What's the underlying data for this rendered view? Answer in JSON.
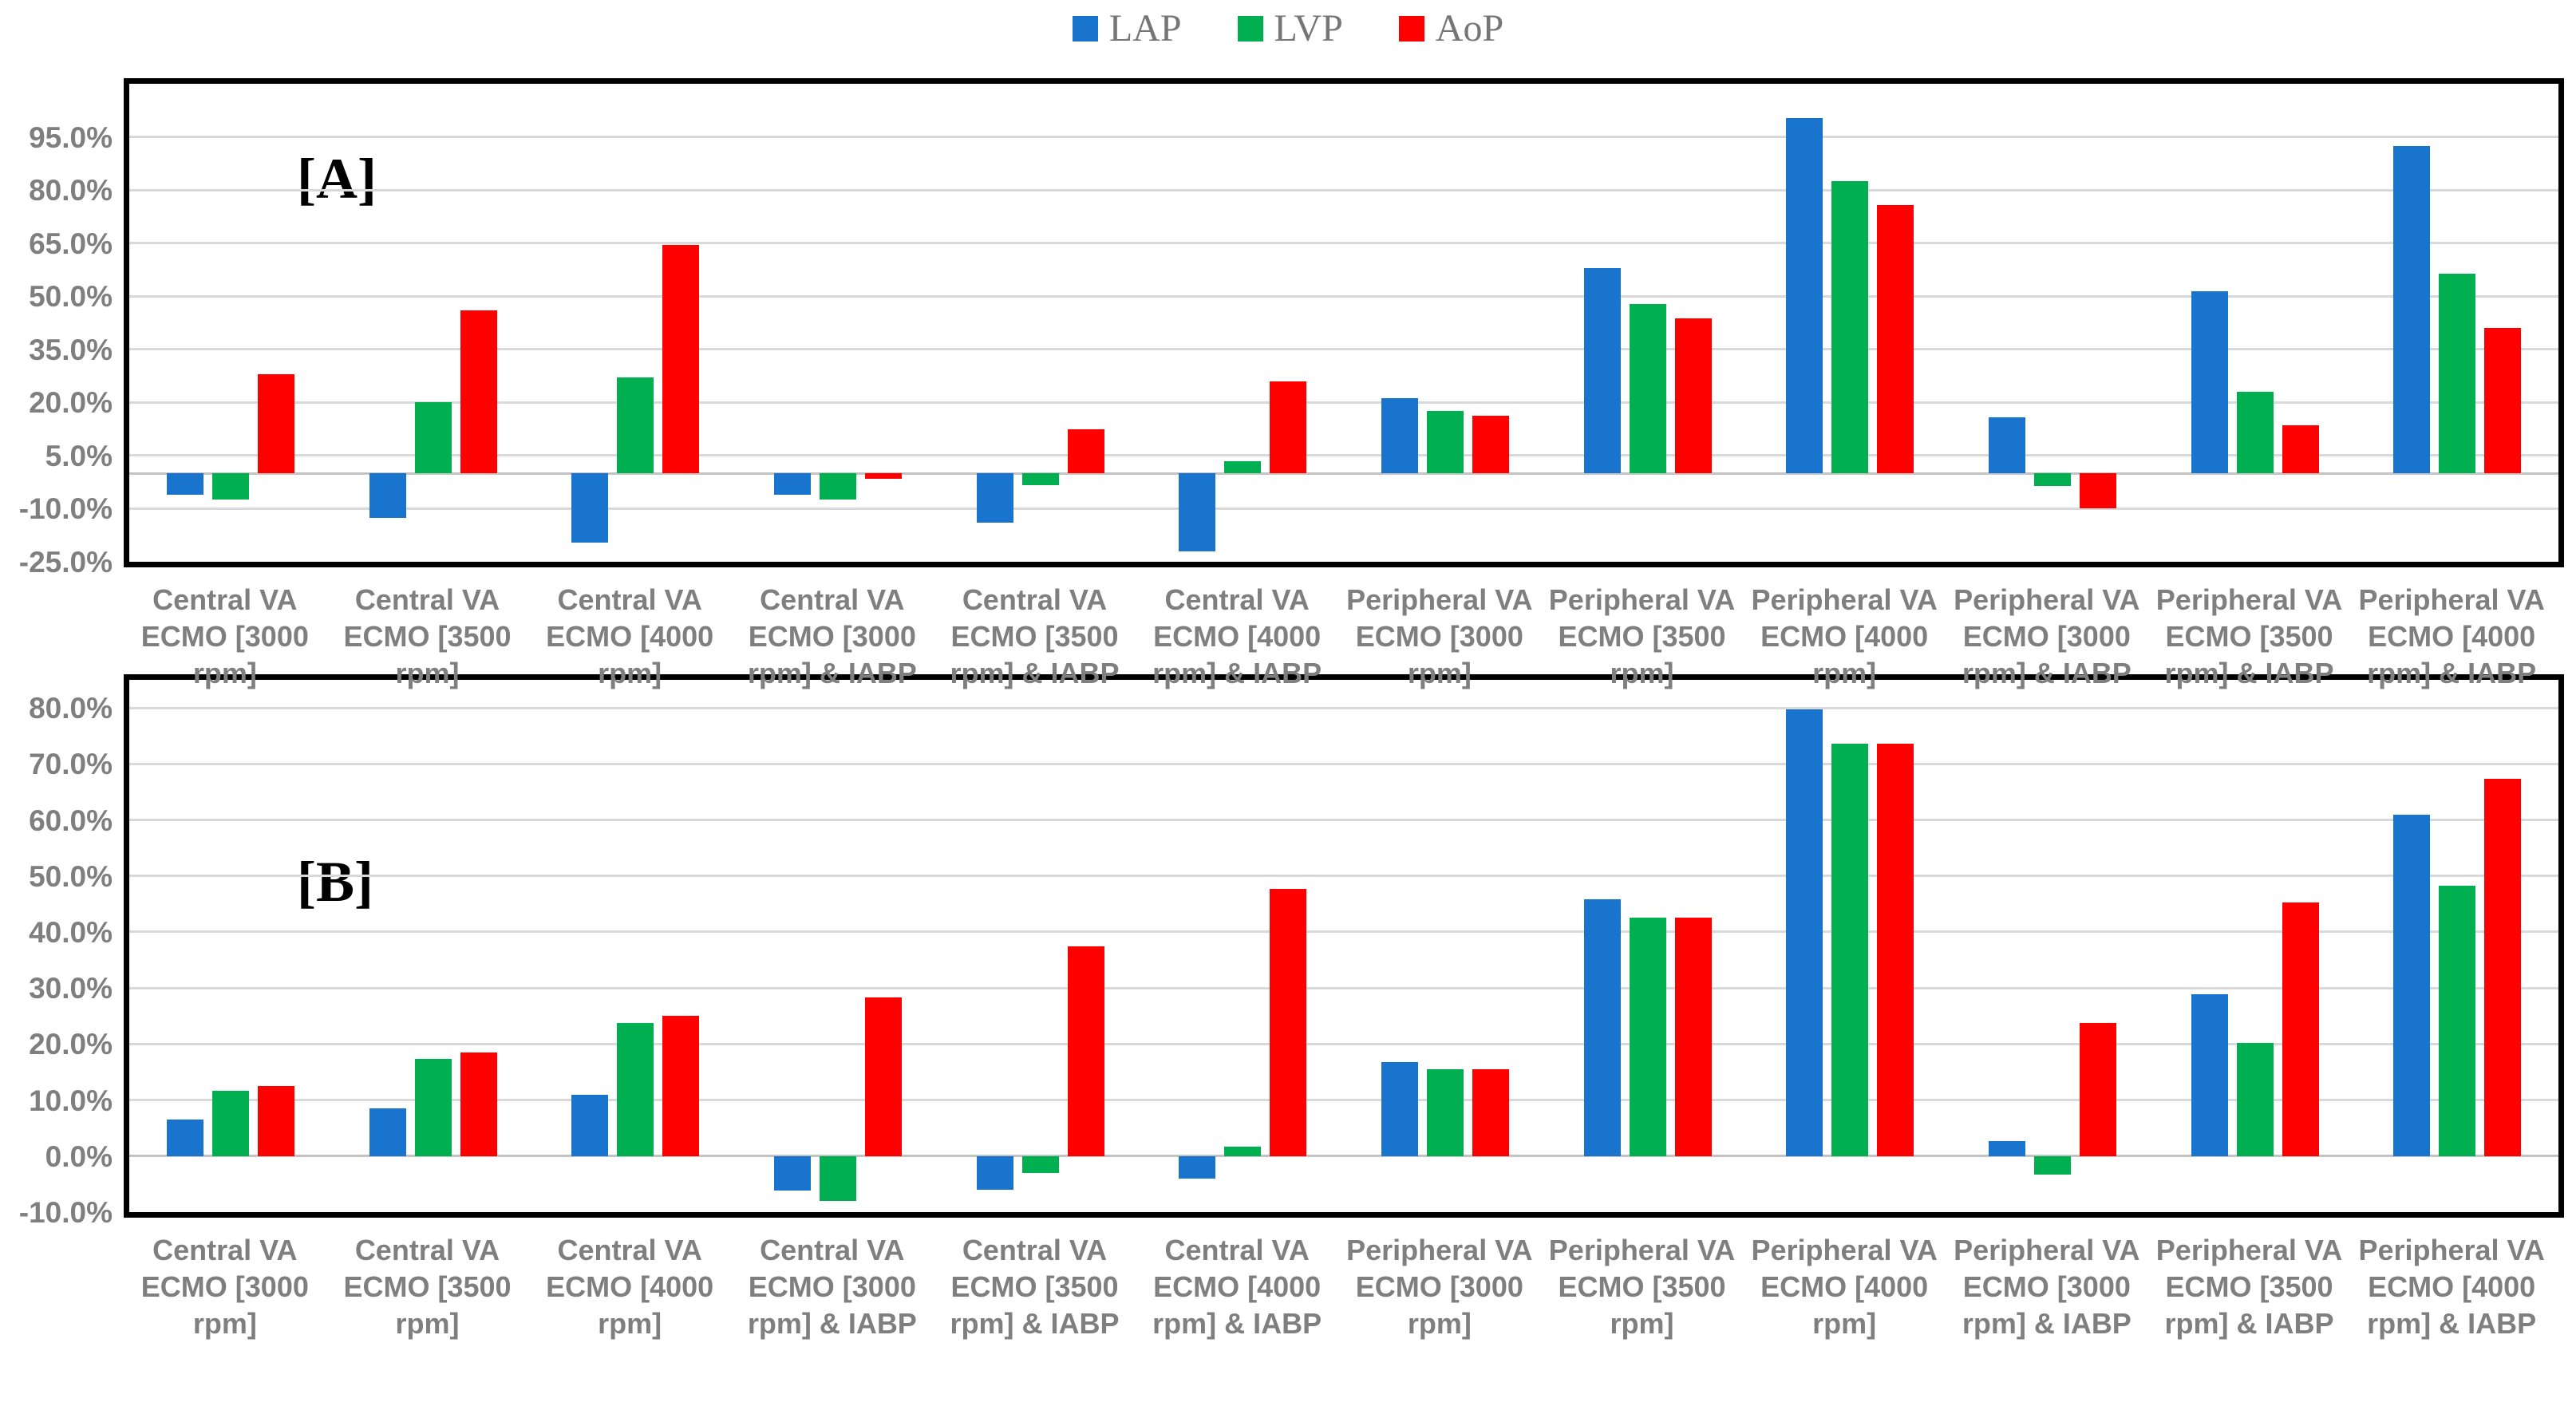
{
  "legend": {
    "position": "top-center",
    "items": [
      {
        "label": "LAP",
        "color": "#1874CD"
      },
      {
        "label": "LVP",
        "color": "#00B050"
      },
      {
        "label": "AoP",
        "color": "#FF0000"
      }
    ]
  },
  "chart_data": [
    {
      "type": "bar",
      "title": "[A]",
      "xlabel": "",
      "ylabel": "",
      "grid": true,
      "ylim": [
        -25,
        110
      ],
      "ytick_values": [
        95,
        80,
        65,
        50,
        35,
        20,
        5,
        -10,
        -25
      ],
      "ytick_labels": [
        "95.0%",
        "80.0%",
        "65.0%",
        "50.0%",
        "35.0%",
        "20.0%",
        "5.0%",
        "-10.0%",
        "-25.0%"
      ],
      "categories": [
        "Central VA ECMO [3000 rpm]",
        "Central VA ECMO [3500 rpm]",
        "Central VA ECMO [4000 rpm]",
        "Central VA ECMO [3000 rpm] & IABP",
        "Central VA ECMO [3500 rpm] & IABP",
        "Central VA ECMO [4000 rpm] & IABP",
        "Peripheral VA ECMO [3000 rpm]",
        "Peripheral VA ECMO [3500 rpm]",
        "Peripheral VA ECMO [4000 rpm]",
        "Peripheral VA ECMO [3000 rpm] & IABP",
        "Peripheral VA ECMO [3500 rpm] & IABP",
        "Peripheral VA ECMO [4000 rpm] & IABP"
      ],
      "category_lines": [
        [
          "Central VA",
          "ECMO [3000",
          "rpm]"
        ],
        [
          "Central VA",
          "ECMO [3500",
          "rpm]"
        ],
        [
          "Central VA",
          "ECMO [4000",
          "rpm]"
        ],
        [
          "Central VA",
          "ECMO [3000",
          "rpm] & IABP"
        ],
        [
          "Central VA",
          "ECMO [3500",
          "rpm] & IABP"
        ],
        [
          "Central VA",
          "ECMO [4000",
          "rpm] & IABP"
        ],
        [
          "Peripheral VA",
          "ECMO [3000",
          "rpm]"
        ],
        [
          "Peripheral VA",
          "ECMO [3500",
          "rpm]"
        ],
        [
          "Peripheral VA",
          "ECMO [4000",
          "rpm]"
        ],
        [
          "Peripheral VA",
          "ECMO [3000",
          "rpm] & IABP"
        ],
        [
          "Peripheral VA",
          "ECMO [3500",
          "rpm] & IABP"
        ],
        [
          "Peripheral VA",
          "ECMO [4000",
          "rpm] & IABP"
        ]
      ],
      "series": [
        {
          "name": "LAP",
          "color": "#1874CD",
          "values": [
            -6.0,
            -12.5,
            -19.5,
            -6.0,
            -14.0,
            -22.0,
            21.3,
            58.0,
            100.4,
            15.8,
            51.3,
            92.5
          ]
        },
        {
          "name": "LVP",
          "color": "#00B050",
          "values": [
            -7.5,
            20.0,
            27.0,
            -7.5,
            -3.4,
            3.5,
            17.5,
            47.7,
            82.6,
            -3.5,
            23.1,
            56.4
          ]
        },
        {
          "name": "AoP",
          "color": "#FF0000",
          "values": [
            28.0,
            46.0,
            64.5,
            -1.5,
            12.5,
            26.0,
            16.3,
            43.8,
            75.8,
            -9.8,
            13.6,
            41.1
          ]
        }
      ]
    },
    {
      "type": "bar",
      "title": "[B]",
      "xlabel": "",
      "ylabel": "",
      "grid": true,
      "ylim": [
        -10,
        85
      ],
      "ytick_values": [
        80,
        70,
        60,
        50,
        40,
        30,
        20,
        10,
        0,
        -10
      ],
      "ytick_labels": [
        "80.0%",
        "70.0%",
        "60.0%",
        "50.0%",
        "40.0%",
        "30.0%",
        "20.0%",
        "10.0%",
        "0.0%",
        "-10.0%"
      ],
      "categories": [
        "Central VA ECMO [3000 rpm]",
        "Central VA ECMO [3500 rpm]",
        "Central VA ECMO [4000 rpm]",
        "Central VA ECMO [3000 rpm] & IABP",
        "Central VA ECMO [3500 rpm] & IABP",
        "Central VA ECMO [4000 rpm] & IABP",
        "Peripheral VA ECMO [3000 rpm]",
        "Peripheral VA ECMO [3500 rpm]",
        "Peripheral VA ECMO [4000 rpm]",
        "Peripheral VA ECMO [3000 rpm] & IABP",
        "Peripheral VA ECMO [3500 rpm] & IABP",
        "Peripheral VA ECMO [4000 rpm] & IABP"
      ],
      "category_lines": [
        [
          "Central VA",
          "ECMO [3000",
          "rpm]"
        ],
        [
          "Central VA",
          "ECMO [3500",
          "rpm]"
        ],
        [
          "Central VA",
          "ECMO [4000",
          "rpm]"
        ],
        [
          "Central VA",
          "ECMO [3000",
          "rpm] & IABP"
        ],
        [
          "Central VA",
          "ECMO [3500",
          "rpm] & IABP"
        ],
        [
          "Central VA",
          "ECMO [4000",
          "rpm] & IABP"
        ],
        [
          "Peripheral VA",
          "ECMO [3000",
          "rpm]"
        ],
        [
          "Peripheral VA",
          "ECMO [3500",
          "rpm]"
        ],
        [
          "Peripheral VA",
          "ECMO [4000",
          "rpm]"
        ],
        [
          "Peripheral VA",
          "ECMO [3000",
          "rpm] & IABP"
        ],
        [
          "Peripheral VA",
          "ECMO [3500",
          "rpm] & IABP"
        ],
        [
          "Peripheral VA",
          "ECMO [4000",
          "rpm] & IABP"
        ]
      ],
      "series": [
        {
          "name": "LAP",
          "color": "#1874CD",
          "values": [
            6.5,
            8.5,
            11.0,
            -6.1,
            -6.0,
            -4.0,
            16.8,
            45.8,
            79.7,
            2.7,
            28.9,
            60.9
          ]
        },
        {
          "name": "LVP",
          "color": "#00B050",
          "values": [
            11.7,
            17.4,
            23.7,
            -8.0,
            -3.0,
            1.7,
            15.5,
            42.6,
            73.6,
            -3.3,
            20.2,
            48.3
          ]
        },
        {
          "name": "AoP",
          "color": "#FF0000",
          "values": [
            12.5,
            18.5,
            25.0,
            28.3,
            37.5,
            47.7,
            15.5,
            42.6,
            73.6,
            23.8,
            45.3,
            67.4
          ]
        }
      ]
    }
  ],
  "style": {
    "grid_color": "#D9D9D9",
    "axis_line_color": "#C3C3C3",
    "tick_label_color": "#7F7F7F",
    "border_color": "#000000"
  }
}
